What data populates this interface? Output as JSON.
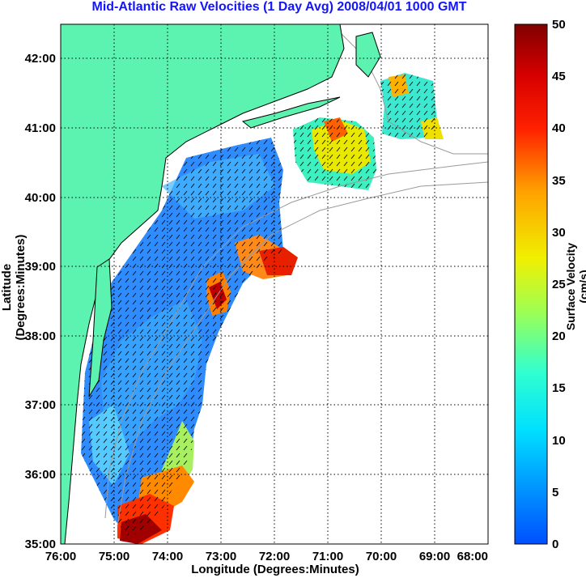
{
  "title": "Mid-Atlantic Raw Velocities (1 Day Avg) 2008/04/01 1000 GMT",
  "xlabel": "Longitude (Degrees:Minutes)",
  "ylabel": "Latitude (Degrees:Minutes)",
  "colorbar": {
    "label": "Surface Velocity (cm/s)",
    "ticks": [
      "0",
      "5",
      "10",
      "15",
      "20",
      "25",
      "30",
      "35",
      "40",
      "45",
      "50"
    ],
    "min": 0,
    "max": 50
  },
  "x_ticks": [
    "76:00",
    "75:00",
    "74:00",
    "73:00",
    "72:00",
    "71:00",
    "70:00",
    "69:00",
    "68:00"
  ],
  "y_ticks": [
    "35:00",
    "36:00",
    "37:00",
    "38:00",
    "39:00",
    "40:00",
    "41:00",
    "42:00"
  ],
  "colors": {
    "land": "#5cf2b0",
    "title": "#1414ff",
    "ocean": "#ffffff",
    "grid": "#000000",
    "bathymetry": "#999999"
  },
  "chart_data": {
    "type": "heatmap",
    "title": "Mid-Atlantic Raw Velocities (1 Day Avg) 2008/04/01 1000 GMT",
    "xlabel": "Longitude (Degrees:Minutes)",
    "ylabel": "Latitude (Degrees:Minutes)",
    "xlim": [
      76,
      68
    ],
    "ylim": [
      35,
      42.5
    ],
    "grid": true,
    "colorbar_range": [
      0,
      50
    ]
  }
}
